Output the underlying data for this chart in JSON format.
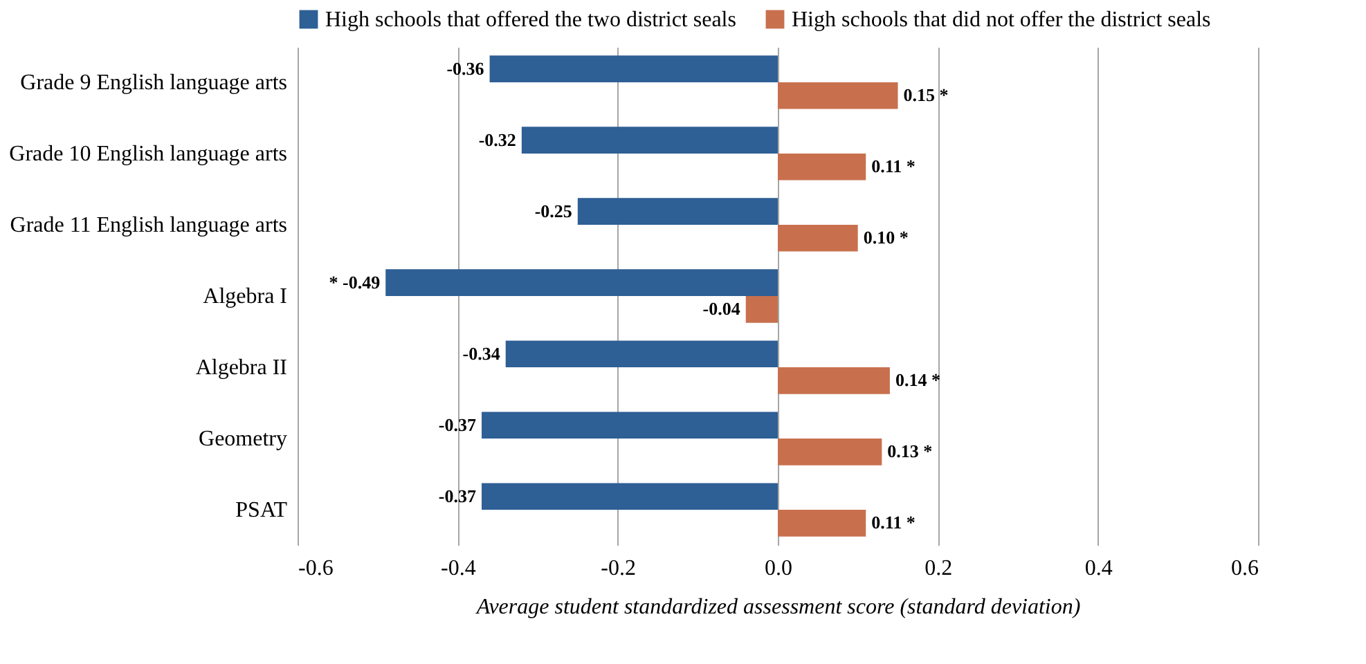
{
  "chart_data": {
    "type": "bar",
    "orientation": "horizontal",
    "xlabel": "Average student standardized assessment score (standard deviation)",
    "categories": [
      "Grade 9 English language arts",
      "Grade 10 English language arts",
      "Grade 11 English language arts",
      "Algebra I",
      "Algebra II",
      "Geometry",
      "PSAT"
    ],
    "series": [
      {
        "name": "High schools that offered the two district seals",
        "color": "#2e5f95",
        "values": [
          -0.36,
          -0.32,
          -0.25,
          -0.49,
          -0.34,
          -0.37,
          -0.37
        ],
        "value_labels": [
          "-0.36",
          "-0.32",
          "-0.25",
          "* -0.49",
          "-0.34",
          "-0.37",
          "-0.37"
        ]
      },
      {
        "name": "High schools that did not offer the district seals",
        "color": "#c8704e",
        "values": [
          0.15,
          0.11,
          0.1,
          -0.04,
          0.14,
          0.13,
          0.11
        ],
        "value_labels": [
          "0.15 *",
          "0.11 *",
          "0.10 *",
          "-0.04",
          "0.14 *",
          "0.13 *",
          "0.11 *"
        ]
      }
    ],
    "xlim": [
      -0.6,
      0.6
    ],
    "xticks": [
      {
        "value": -0.6,
        "label": "-0.6"
      },
      {
        "value": -0.4,
        "label": "-0.4"
      },
      {
        "value": -0.2,
        "label": "-0.2"
      },
      {
        "value": 0,
        "label": "0.0"
      },
      {
        "value": 0.2,
        "label": "0.2"
      },
      {
        "value": 0.4,
        "label": "0.4"
      },
      {
        "value": 0.6,
        "label": "0.6"
      }
    ],
    "grid": "x",
    "legend": "top"
  }
}
